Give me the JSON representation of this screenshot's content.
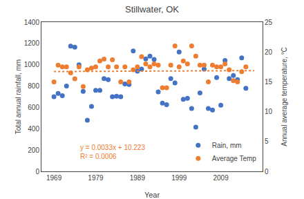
{
  "chart_data": {
    "type": "scatter",
    "title": "Stillwater, OK",
    "xlabel": "Year",
    "ylabel": "Total annual rainfall, mm",
    "y2label": "Annual average temperature, °C",
    "x": [
      1969,
      1970,
      1971,
      1972,
      1973,
      1974,
      1975,
      1976,
      1977,
      1978,
      1979,
      1980,
      1981,
      1982,
      1983,
      1984,
      1985,
      1986,
      1987,
      1988,
      1989,
      1990,
      1991,
      1992,
      1993,
      1994,
      1995,
      1996,
      1997,
      1998,
      1999,
      2000,
      2001,
      2002,
      2003,
      2004,
      2005,
      2006,
      2007,
      2008,
      2009,
      2010,
      2011,
      2012,
      2013,
      2014,
      2015
    ],
    "series": [
      {
        "name": "Rain, mm",
        "type": "scatter",
        "marker": "circle",
        "color": "#4472c4",
        "values": [
          700,
          730,
          710,
          800,
          1175,
          1165,
          1000,
          750,
          480,
          610,
          760,
          760,
          870,
          860,
          700,
          705,
          700,
          820,
          815,
          1130,
          940,
          960,
          1055,
          1080,
          1050,
          745,
          640,
          625,
          870,
          830,
          1120,
          675,
          685,
          590,
          415,
          735,
          960,
          590,
          575,
          880,
          620,
          1040,
          870,
          900,
          860,
          1065,
          780
        ]
      },
      {
        "name": "Average Temp",
        "type": "scatter",
        "marker": "circle",
        "color": "#ed7d31",
        "axis": "y2",
        "values": [
          15.0,
          17.8,
          17.5,
          17.5,
          16.5,
          15.5,
          17.5,
          14.2,
          17.0,
          17.3,
          17.5,
          18.5,
          18.8,
          17.5,
          18.7,
          17.5,
          15.0,
          17.5,
          15.0,
          17.0,
          17.5,
          19.2,
          18.0,
          17.5,
          18.0,
          17.8,
          14.0,
          14.0,
          17.8,
          21.0,
          17.5,
          18.5,
          18.0,
          21.0,
          19.3,
          17.8,
          17.8,
          15.0,
          17.8,
          17.5,
          17.5,
          18.0,
          17.0,
          15.2,
          15.0,
          16.7,
          17.5
        ]
      },
      {
        "type": "line",
        "line_style": "dotted",
        "color": "#ed7d31",
        "axis": "y2",
        "x": [
          1969,
          2017
        ],
        "values": [
          16.72,
          16.88
        ]
      }
    ],
    "annotations": [
      {
        "text": [
          "y = 0.0033x + 10.223",
          "R² = 0.0006"
        ],
        "color": "#ed7d31",
        "x": 1975,
        "y": 270
      }
    ],
    "xlim": [
      1966,
      2019
    ],
    "xticks": [
      1969,
      1979,
      1989,
      1999,
      2009
    ],
    "ylim": [
      0,
      1400
    ],
    "yticks": [
      0,
      200,
      400,
      600,
      800,
      1000,
      1200,
      1400
    ],
    "y2lim": [
      0,
      25
    ],
    "y2ticks": [
      0,
      5,
      10,
      15,
      20,
      25
    ],
    "legend": "lower right",
    "grid": false
  }
}
